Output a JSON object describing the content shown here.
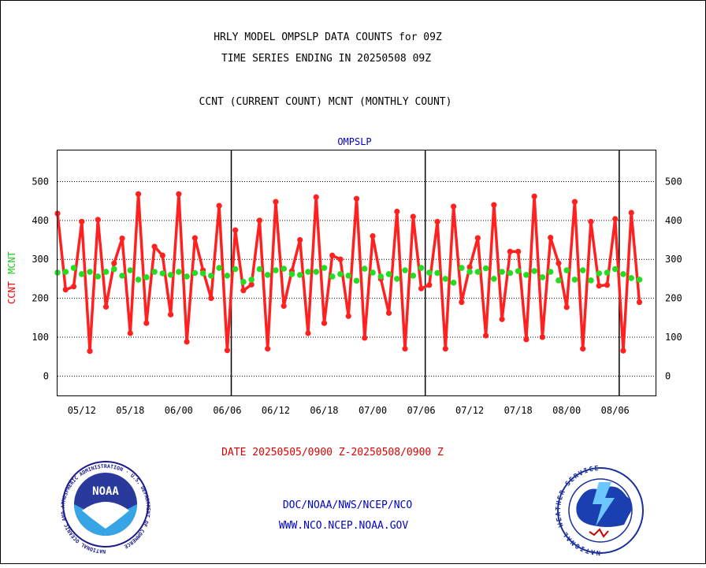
{
  "header": {
    "line1": "HRLY MODEL OMPSLP DATA COUNTS for 09Z",
    "line2": "TIME SERIES ENDING IN 20250508 09Z",
    "line3": "CCNT (CURRENT COUNT) MCNT (MONTHLY COUNT)"
  },
  "footer": {
    "date_range": "DATE 20250505/0900 Z-20250508/0900 Z",
    "org_line": "DOC/NOAA/NWS/NCEP/NCO",
    "url_line": "WWW.NCO.NCEP.NOAA.GOV"
  },
  "logos": {
    "noaa_text": "NOAA",
    "nws_ring_text": "NATIONAL WEATHER SERVICE",
    "noaa_ring_text": "NATIONAL OCEANIC AND ATMOSPHERIC ADMINISTRATION · U.S. DEPARTMENT OF COMMERCE"
  },
  "colors": {
    "ccnt": "#ff2020",
    "mcnt": "#22dd22",
    "panel_title": "#0000cc",
    "footer_red": "#dd0000",
    "footer_blue": "#0000cc"
  },
  "chart_data": {
    "type": "line",
    "title": "OMPSLP",
    "ylabel_ccnt": "CCNT",
    "ylabel_mcnt": "MCNT",
    "ylim": [
      -50,
      580
    ],
    "yticks": [
      0,
      100,
      200,
      300,
      400,
      500
    ],
    "grid": true,
    "xlim": [
      0,
      74
    ],
    "xtick_labels": [
      "05/12",
      "05/18",
      "06/00",
      "06/06",
      "06/12",
      "06/18",
      "07/00",
      "07/06",
      "07/12",
      "07/18",
      "08/00",
      "08/06"
    ],
    "xtick_positions": [
      3,
      9,
      15,
      21,
      27,
      33,
      39,
      45,
      51,
      57,
      63,
      69
    ],
    "day_boundaries": [
      21.5,
      45.5,
      69.5
    ],
    "x": [
      0,
      1,
      2,
      3,
      4,
      5,
      6,
      7,
      8,
      9,
      10,
      11,
      12,
      13,
      14,
      15,
      16,
      17,
      18,
      19,
      20,
      21,
      22,
      23,
      24,
      25,
      26,
      27,
      28,
      29,
      30,
      31,
      32,
      33,
      34,
      35,
      36,
      37,
      38,
      39,
      40,
      41,
      42,
      43,
      44,
      45,
      46,
      47,
      48,
      49,
      50,
      51,
      52,
      53,
      54,
      55,
      56,
      57,
      58,
      59,
      60,
      61,
      62,
      63,
      64,
      65,
      66,
      67,
      68,
      69,
      70,
      71,
      72
    ],
    "series": [
      {
        "name": "CCNT",
        "values": [
          418,
          222,
          230,
          397,
          64,
          402,
          178,
          290,
          354,
          110,
          468,
          136,
          333,
          310,
          158,
          468,
          88,
          355,
          272,
          200,
          438,
          66,
          375,
          220,
          235,
          400,
          70,
          448,
          180,
          270,
          350,
          110,
          460,
          136,
          310,
          300,
          154,
          456,
          98,
          360,
          250,
          162,
          423,
          70,
          410,
          225,
          234,
          397,
          70,
          436,
          190,
          280,
          355,
          104,
          440,
          146,
          320,
          320,
          94,
          462,
          100,
          356,
          290,
          177,
          448,
          70,
          397,
          232,
          234,
          404,
          65,
          420,
          190
        ]
      },
      {
        "name": "MCNT",
        "values": [
          266,
          268,
          278,
          262,
          268,
          256,
          268,
          275,
          258,
          272,
          248,
          254,
          268,
          264,
          260,
          268,
          256,
          265,
          264,
          258,
          278,
          258,
          275,
          242,
          248,
          275,
          260,
          272,
          276,
          262,
          260,
          268,
          268,
          278,
          256,
          262,
          258,
          245,
          276,
          266,
          256,
          262,
          250,
          272,
          258,
          278,
          266,
          265,
          250,
          240,
          278,
          268,
          268,
          277,
          250,
          268,
          265,
          270,
          260,
          270,
          254,
          268,
          246,
          272,
          248,
          272,
          246,
          264,
          266,
          275,
          262,
          252,
          248
        ]
      }
    ]
  }
}
